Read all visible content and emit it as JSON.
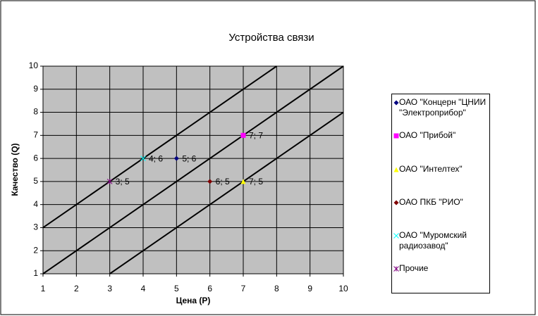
{
  "chart_data": {
    "type": "scatter",
    "title": "Устройства связи",
    "x_label": "Цена (P)",
    "y_label": "Качество (Q)",
    "xlim": [
      1,
      10
    ],
    "ylim": [
      1,
      10
    ],
    "xticks": [
      1,
      2,
      3,
      4,
      5,
      6,
      7,
      8,
      9,
      10
    ],
    "yticks": [
      1,
      2,
      3,
      4,
      5,
      6,
      7,
      8,
      9,
      10
    ],
    "grid": true,
    "legend": "right",
    "lines": [
      {
        "color": "#000000",
        "x": [
          1,
          8
        ],
        "values": [
          3,
          10
        ]
      },
      {
        "color": "#000000",
        "x": [
          1,
          10
        ],
        "values": [
          1,
          10
        ]
      },
      {
        "color": "#000000",
        "x": [
          3,
          10
        ],
        "values": [
          1,
          8
        ]
      }
    ],
    "series": [
      {
        "name": "ОАО \"Концерн \"ЦНИИ \"Электроприбор\"",
        "color": "#000080",
        "marker": "diamond",
        "x": [
          5
        ],
        "values": [
          6
        ],
        "value_labels": [
          "5; 6"
        ]
      },
      {
        "name": "ОАО \"Прибой\"",
        "color": "#ff00ff",
        "marker": "square",
        "x": [
          7
        ],
        "values": [
          7
        ],
        "value_labels": [
          "7; 7"
        ]
      },
      {
        "name": "ОАО \"Интелтех\"",
        "color": "#ffff00",
        "marker": "triangle",
        "x": [
          7
        ],
        "values": [
          5
        ],
        "value_labels": [
          "7; 5"
        ]
      },
      {
        "name": "ОАО ПКБ \"РИО\"",
        "color": "#800000",
        "marker": "diamond",
        "x": [
          6
        ],
        "values": [
          5
        ],
        "value_labels": [
          "6; 5"
        ]
      },
      {
        "name": "ОАО \"Муромский радиозавод\"",
        "color": "#00ffff",
        "marker": "x",
        "x": [
          4
        ],
        "values": [
          6
        ],
        "value_labels": [
          "4; 6"
        ]
      },
      {
        "name": "Прочие",
        "color": "#800080",
        "marker": "star",
        "x": [
          3
        ],
        "values": [
          5
        ],
        "value_labels": [
          "3; 5"
        ]
      }
    ]
  }
}
